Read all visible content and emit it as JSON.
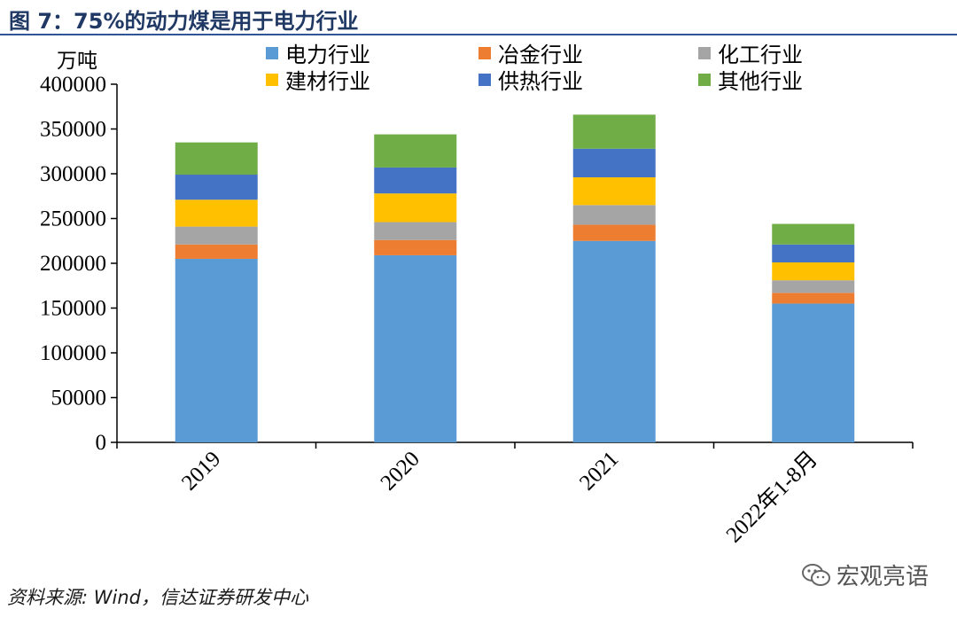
{
  "title": "图 7：75%的动力煤是用于电力行业",
  "source": "资料来源: Wind，信达证券研发中心",
  "watermark": {
    "text": "宏观亮语",
    "icon": "wechat-icon"
  },
  "chart_data": {
    "type": "bar",
    "stacked": true,
    "unit_label": "万吨",
    "categories": [
      "2019",
      "2020",
      "2021",
      "2022年1-8月"
    ],
    "ylim": [
      0,
      400000
    ],
    "yticks": [
      0,
      50000,
      100000,
      150000,
      200000,
      250000,
      300000,
      350000,
      400000
    ],
    "grid": false,
    "legend_position": "top",
    "series": [
      {
        "name": "电力行业",
        "color": "#5b9bd5",
        "values": [
          205000,
          209000,
          225000,
          155000
        ]
      },
      {
        "name": "冶金行业",
        "color": "#ed7d31",
        "values": [
          16000,
          17000,
          18000,
          12000
        ]
      },
      {
        "name": "化工行业",
        "color": "#a5a5a5",
        "values": [
          20000,
          20000,
          22000,
          14000
        ]
      },
      {
        "name": "建材行业",
        "color": "#ffc000",
        "values": [
          30000,
          32000,
          31000,
          20000
        ]
      },
      {
        "name": "供热行业",
        "color": "#4472c4",
        "values": [
          28000,
          29000,
          32000,
          20000
        ]
      },
      {
        "name": "其他行业",
        "color": "#70ad47",
        "values": [
          36000,
          37000,
          38000,
          23000
        ]
      }
    ]
  }
}
